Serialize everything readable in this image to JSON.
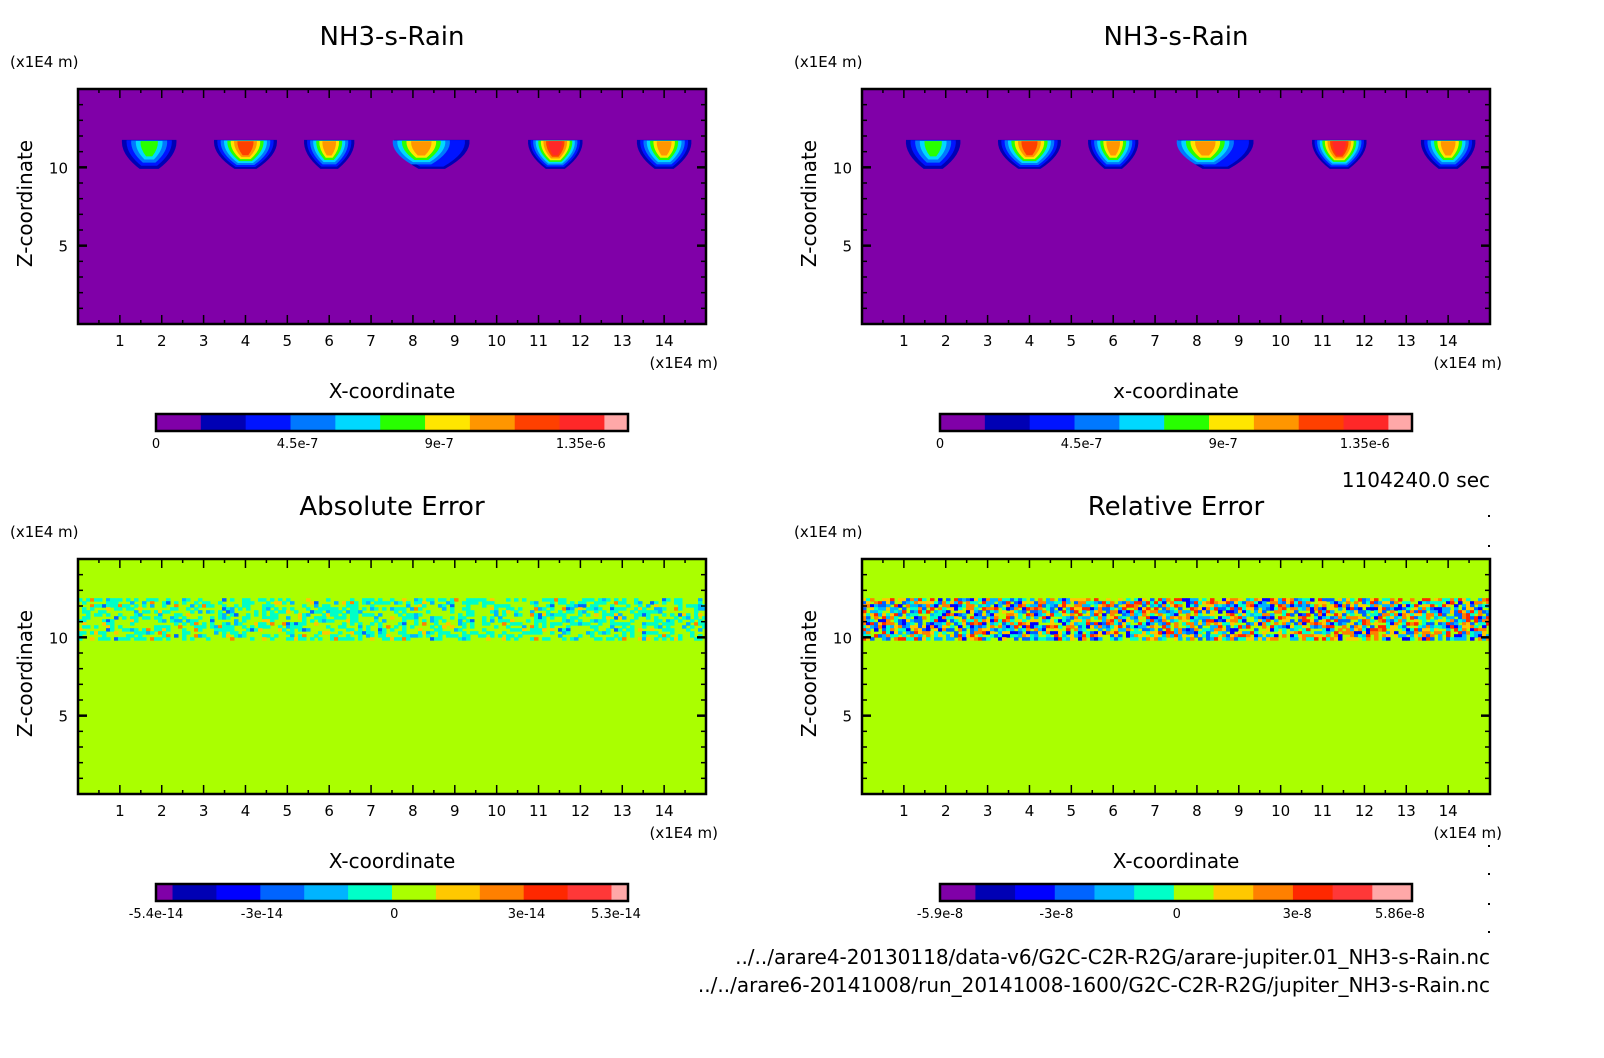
{
  "chart_data": [
    {
      "type": "heatmap",
      "id": "panel-nh3-a",
      "title": "NH3-s-Rain",
      "xlabel": "X-coordinate",
      "ylabel": "Z-coordinate",
      "x_unit": "(x1E4 m)",
      "y_unit": "(x1E4 m)",
      "xlim": [
        0,
        15
      ],
      "ylim": [
        0,
        15
      ],
      "x_ticks": [
        1,
        2,
        3,
        4,
        5,
        6,
        7,
        8,
        9,
        10,
        11,
        12,
        13,
        14
      ],
      "y_ticks": [
        5,
        10
      ],
      "background_level": 0,
      "colorbar": {
        "colors": [
          "#8000a8",
          "#0000b4",
          "#0014ff",
          "#0078ff",
          "#00d8ff",
          "#28ff00",
          "#ffe600",
          "#ff9600",
          "#ff4000",
          "#ff2828",
          "#ffa8a8"
        ],
        "tick_labels": [
          "0",
          "4.5e-7",
          "9e-7",
          "1.35e-6"
        ],
        "tick_values": [
          0,
          4.5e-07,
          9e-07,
          1.35e-06
        ],
        "range": [
          0,
          1.5e-06
        ]
      },
      "features": [
        {
          "x": 1.7,
          "z": 11.2,
          "width": 1.3,
          "peak_level": 5
        },
        {
          "x": 4.0,
          "z": 11.2,
          "width": 1.5,
          "peak_level": 8
        },
        {
          "x": 6.0,
          "z": 11.2,
          "width": 1.2,
          "peak_level": 7
        },
        {
          "x": 8.2,
          "z": 11.2,
          "width": 1.8,
          "peak_level": 7
        },
        {
          "x": 11.4,
          "z": 11.2,
          "width": 1.3,
          "peak_level": 9
        },
        {
          "x": 14.0,
          "z": 11.2,
          "width": 1.3,
          "peak_level": 7
        }
      ]
    },
    {
      "type": "heatmap",
      "id": "panel-nh3-b",
      "title": "NH3-s-Rain",
      "xlabel": "x-coordinate",
      "ylabel": "Z-coordinate",
      "x_unit": "(x1E4 m)",
      "y_unit": "(x1E4 m)",
      "xlim": [
        0,
        15
      ],
      "ylim": [
        0,
        15
      ],
      "x_ticks": [
        1,
        2,
        3,
        4,
        5,
        6,
        7,
        8,
        9,
        10,
        11,
        12,
        13,
        14
      ],
      "y_ticks": [
        5,
        10
      ],
      "background_level": 0,
      "colorbar": {
        "colors": [
          "#8000a8",
          "#0000b4",
          "#0014ff",
          "#0078ff",
          "#00d8ff",
          "#28ff00",
          "#ffe600",
          "#ff9600",
          "#ff4000",
          "#ff2828",
          "#ffa8a8"
        ],
        "tick_labels": [
          "0",
          "4.5e-7",
          "9e-7",
          "1.35e-6"
        ],
        "tick_values": [
          0,
          4.5e-07,
          9e-07,
          1.35e-06
        ],
        "range": [
          0,
          1.5e-06
        ]
      },
      "features": [
        {
          "x": 1.7,
          "z": 11.2,
          "width": 1.3,
          "peak_level": 5
        },
        {
          "x": 4.0,
          "z": 11.2,
          "width": 1.5,
          "peak_level": 8
        },
        {
          "x": 6.0,
          "z": 11.2,
          "width": 1.2,
          "peak_level": 7
        },
        {
          "x": 8.2,
          "z": 11.2,
          "width": 1.8,
          "peak_level": 7
        },
        {
          "x": 11.4,
          "z": 11.2,
          "width": 1.3,
          "peak_level": 9
        },
        {
          "x": 14.0,
          "z": 11.2,
          "width": 1.3,
          "peak_level": 7
        }
      ]
    },
    {
      "type": "heatmap",
      "id": "panel-abs-err",
      "title": "Absolute Error",
      "xlabel": "X-coordinate",
      "ylabel": "Z-coordinate",
      "x_unit": "(x1E4 m)",
      "y_unit": "(x1E4 m)",
      "xlim": [
        0,
        15
      ],
      "ylim": [
        0,
        15
      ],
      "x_ticks": [
        1,
        2,
        3,
        4,
        5,
        6,
        7,
        8,
        9,
        10,
        11,
        12,
        13,
        14
      ],
      "y_ticks": [
        5,
        10
      ],
      "background_level": 6,
      "noise_band_z": [
        10.0,
        12.5
      ],
      "noise_amplitude": "low",
      "colorbar": {
        "colors": [
          "#8000a8",
          "#0000b4",
          "#0000ff",
          "#0064ff",
          "#00b4ff",
          "#00ffc8",
          "#aaff00",
          "#ffc800",
          "#ff8000",
          "#ff2800",
          "#ff3838",
          "#ffa8a8"
        ],
        "tick_labels": [
          "-5.4e-14",
          "-3e-14",
          "0",
          "3e-14",
          "5.3e-14"
        ],
        "tick_values": [
          -5.4e-14,
          -3e-14,
          0,
          3e-14,
          5.3e-14
        ],
        "range": [
          -5.4e-14,
          5.3e-14
        ]
      }
    },
    {
      "type": "heatmap",
      "id": "panel-rel-err",
      "title": "Relative Error",
      "xlabel": "X-coordinate",
      "ylabel": "Z-coordinate",
      "x_unit": "(x1E4 m)",
      "y_unit": "(x1E4 m)",
      "xlim": [
        0,
        15
      ],
      "ylim": [
        0,
        15
      ],
      "x_ticks": [
        1,
        2,
        3,
        4,
        5,
        6,
        7,
        8,
        9,
        10,
        11,
        12,
        13,
        14
      ],
      "y_ticks": [
        5,
        10
      ],
      "background_level": 6,
      "noise_band_z": [
        10.0,
        12.5
      ],
      "noise_amplitude": "high",
      "colorbar": {
        "colors": [
          "#8000a8",
          "#0000b4",
          "#0000ff",
          "#0064ff",
          "#00b4ff",
          "#00ffc8",
          "#aaff00",
          "#ffc800",
          "#ff8000",
          "#ff2800",
          "#ff3838",
          "#ffa8a8"
        ],
        "tick_labels": [
          "-5.9e-8",
          "-3e-8",
          "0",
          "3e-8",
          "5.86e-8"
        ],
        "tick_values": [
          -5.9e-08,
          -3e-08,
          0,
          3e-08,
          5.86e-08
        ],
        "range": [
          -5.9e-08,
          5.86e-08
        ]
      }
    }
  ],
  "time_label": "1104240.0 sec",
  "footer": {
    "file_a": "../../arare4-20130118/data-v6/G2C-C2R-R2G/arare-jupiter.01_NH3-s-Rain.nc",
    "file_b": "../../arare6-20141008/run_20141008-1600/G2C-C2R-R2G/jupiter_NH3-s-Rain.nc"
  }
}
